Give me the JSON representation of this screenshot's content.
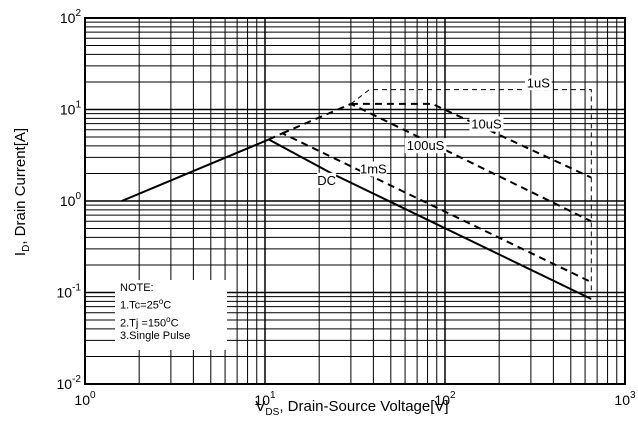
{
  "chart_data": {
    "type": "line",
    "x_scale": "log",
    "y_scale": "log",
    "xlim": [
      1,
      1000
    ],
    "ylim": [
      0.01,
      100
    ],
    "x_ticks": [
      {
        "value": 1,
        "base": "10",
        "exp": "0"
      },
      {
        "value": 10,
        "base": "10",
        "exp": "1"
      },
      {
        "value": 100,
        "base": "10",
        "exp": "2"
      },
      {
        "value": 1000,
        "base": "10",
        "exp": "3"
      }
    ],
    "y_ticks": [
      {
        "value": 0.01,
        "base": "10",
        "exp": "-2"
      },
      {
        "value": 0.1,
        "base": "10",
        "exp": "-1"
      },
      {
        "value": 1,
        "base": "10",
        "exp": "0"
      },
      {
        "value": 10,
        "base": "10",
        "exp": "1"
      },
      {
        "value": 100,
        "base": "10",
        "exp": "2"
      }
    ],
    "grid": true,
    "xlabel": {
      "main": "V",
      "sub": "DS",
      "rest": ", Drain-Source Voltage[V]"
    },
    "ylabel": {
      "main": "I",
      "sub": "D",
      "rest": ", Drain Current[A]"
    },
    "series": [
      {
        "name": "DC",
        "style": "solid",
        "width": 2,
        "points": [
          [
            1.6,
            1.0
          ],
          [
            10.5,
            4.7
          ],
          [
            23.5,
            2.0
          ],
          [
            650,
            0.085
          ]
        ]
      },
      {
        "name": "1mS",
        "style": "dashed",
        "width": 2,
        "points": [
          [
            10.5,
            4.7
          ],
          [
            12.5,
            5.5
          ],
          [
            650,
            0.13
          ]
        ]
      },
      {
        "name": "100uS",
        "style": "dashed",
        "width": 2,
        "points": [
          [
            12.5,
            5.5
          ],
          [
            30,
            11.5
          ],
          [
            650,
            0.6
          ]
        ]
      },
      {
        "name": "10uS",
        "style": "dashed",
        "width": 2,
        "points": [
          [
            30,
            11.5
          ],
          [
            85,
            11.5
          ],
          [
            650,
            1.8
          ]
        ]
      },
      {
        "name": "1uS",
        "style": "dashed",
        "width": 1,
        "points": [
          [
            30,
            11.5
          ],
          [
            38,
            16.5
          ],
          [
            650,
            16.5
          ],
          [
            650,
            0.1
          ]
        ]
      }
    ],
    "annotations": [
      {
        "text": "DC",
        "x": 22,
        "y": 1.5
      },
      {
        "text": "1mS",
        "x": 40,
        "y": 2.0
      },
      {
        "text": "100uS",
        "x": 78,
        "y": 3.6
      },
      {
        "text": "10uS",
        "x": 170,
        "y": 6.2
      },
      {
        "text": "1uS",
        "x": 330,
        "y": 17.5
      }
    ]
  },
  "note": {
    "title": "NOTE:",
    "line1": {
      "prefix": "1.Tc=25",
      "sup": "o",
      "suffix": "C"
    },
    "line2": {
      "prefix": "2.Tj =150",
      "sup": "o",
      "suffix": "C"
    },
    "line3": "3.Single Pulse"
  }
}
